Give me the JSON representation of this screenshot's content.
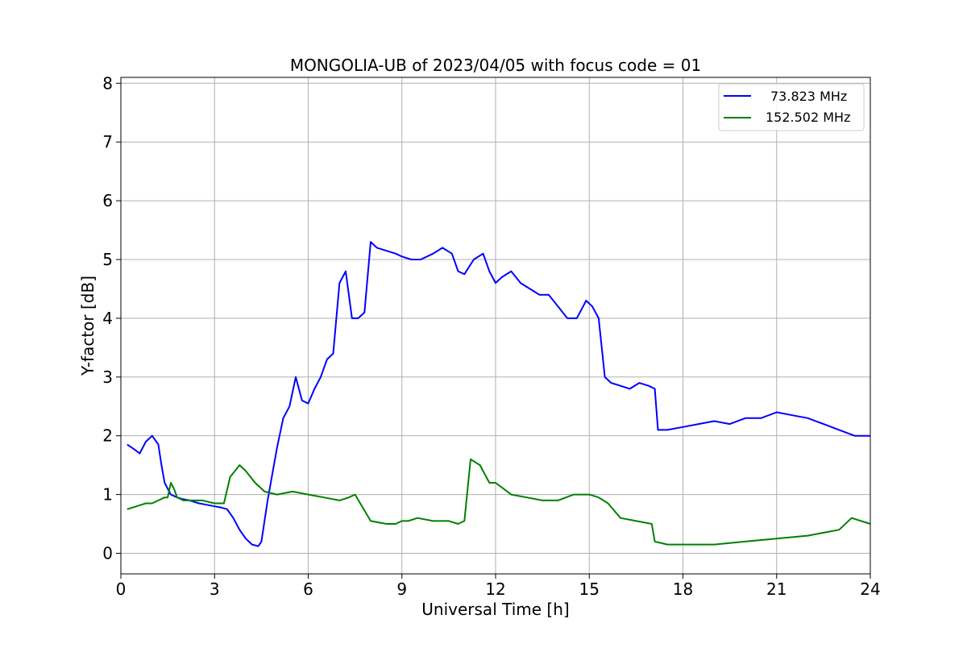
{
  "chart_data": {
    "type": "line",
    "title": "MONGOLIA-UB of 2023/04/05 with focus code = 01",
    "xlabel": "Universal Time [h]",
    "ylabel": "Y-factor [dB]",
    "xlim": [
      0,
      24
    ],
    "ylim": [
      -0.35,
      8.1
    ],
    "x_ticks": [
      "0",
      "3",
      "6",
      "9",
      "12",
      "15",
      "18",
      "21",
      "24"
    ],
    "y_ticks": [
      "0",
      "1",
      "2",
      "3",
      "4",
      "5",
      "6",
      "7",
      "8"
    ],
    "grid": true,
    "legend_position": "top-right",
    "series": [
      {
        "name": "73.823 MHz",
        "color": "#0000ff",
        "x": [
          0.2,
          0.4,
          0.6,
          0.8,
          1.0,
          1.2,
          1.3,
          1.4,
          1.5,
          1.6,
          1.8,
          2.0,
          2.2,
          2.5,
          2.8,
          3.0,
          3.2,
          3.4,
          3.6,
          3.8,
          4.0,
          4.2,
          4.4,
          4.5,
          4.7,
          4.8,
          5.0,
          5.2,
          5.4,
          5.6,
          5.8,
          6.0,
          6.2,
          6.4,
          6.6,
          6.8,
          7.0,
          7.2,
          7.4,
          7.6,
          7.8,
          8.0,
          8.2,
          8.5,
          8.8,
          9.0,
          9.3,
          9.6,
          10.0,
          10.3,
          10.6,
          10.8,
          11.0,
          11.3,
          11.6,
          11.8,
          12.0,
          12.2,
          12.5,
          12.8,
          13.1,
          13.4,
          13.7,
          14.0,
          14.3,
          14.6,
          14.9,
          15.1,
          15.3,
          15.5,
          15.7,
          16.0,
          16.3,
          16.6,
          16.9,
          17.1,
          17.2,
          17.5,
          18.0,
          18.5,
          19.0,
          19.5,
          20.0,
          20.5,
          21.0,
          21.5,
          22.0,
          22.5,
          23.0,
          23.5,
          24.0
        ],
        "y": [
          1.85,
          1.78,
          1.7,
          1.9,
          2.0,
          1.85,
          1.5,
          1.2,
          1.1,
          1.0,
          0.95,
          0.92,
          0.9,
          0.85,
          0.82,
          0.8,
          0.78,
          0.75,
          0.6,
          0.4,
          0.25,
          0.15,
          0.12,
          0.2,
          0.9,
          1.2,
          1.8,
          2.3,
          2.5,
          3.0,
          2.6,
          2.55,
          2.8,
          3.0,
          3.3,
          3.4,
          4.6,
          4.8,
          4.0,
          4.0,
          4.1,
          5.3,
          5.2,
          5.15,
          5.1,
          5.05,
          5.0,
          5.0,
          5.1,
          5.2,
          5.1,
          4.8,
          4.75,
          5.0,
          5.1,
          4.8,
          4.6,
          4.7,
          4.8,
          4.6,
          4.5,
          4.4,
          4.4,
          4.2,
          4.0,
          4.0,
          4.3,
          4.2,
          4.0,
          3.0,
          2.9,
          2.85,
          2.8,
          2.9,
          2.85,
          2.8,
          2.1,
          2.1,
          2.15,
          2.2,
          2.25,
          2.2,
          2.3,
          2.3,
          2.4,
          2.35,
          2.3,
          2.2,
          2.1,
          2.0,
          2.0
        ]
      },
      {
        "name": "152.502 MHz",
        "color": "#008000",
        "x": [
          0.2,
          0.5,
          0.8,
          1.0,
          1.2,
          1.4,
          1.5,
          1.6,
          1.7,
          1.8,
          2.0,
          2.3,
          2.6,
          3.0,
          3.3,
          3.5,
          3.8,
          4.0,
          4.3,
          4.6,
          5.0,
          5.5,
          6.0,
          6.5,
          7.0,
          7.3,
          7.5,
          8.0,
          8.5,
          8.8,
          9.0,
          9.2,
          9.5,
          10.0,
          10.5,
          10.8,
          11.0,
          11.2,
          11.5,
          11.8,
          12.0,
          12.5,
          13.0,
          13.5,
          14.0,
          14.5,
          15.0,
          15.3,
          15.6,
          16.0,
          16.5,
          17.0,
          17.1,
          17.5,
          18.0,
          19.0,
          20.0,
          21.0,
          22.0,
          23.0,
          23.4,
          24.0
        ],
        "y": [
          0.75,
          0.8,
          0.85,
          0.85,
          0.9,
          0.95,
          0.95,
          1.2,
          1.1,
          0.95,
          0.9,
          0.9,
          0.9,
          0.85,
          0.85,
          1.3,
          1.5,
          1.4,
          1.2,
          1.05,
          1.0,
          1.05,
          1.0,
          0.95,
          0.9,
          0.95,
          1.0,
          0.55,
          0.5,
          0.5,
          0.55,
          0.55,
          0.6,
          0.55,
          0.55,
          0.5,
          0.55,
          1.6,
          1.5,
          1.2,
          1.2,
          1.0,
          0.95,
          0.9,
          0.9,
          1.0,
          1.0,
          0.95,
          0.85,
          0.6,
          0.55,
          0.5,
          0.2,
          0.15,
          0.15,
          0.15,
          0.2,
          0.25,
          0.3,
          0.4,
          0.6,
          0.5
        ]
      }
    ]
  }
}
